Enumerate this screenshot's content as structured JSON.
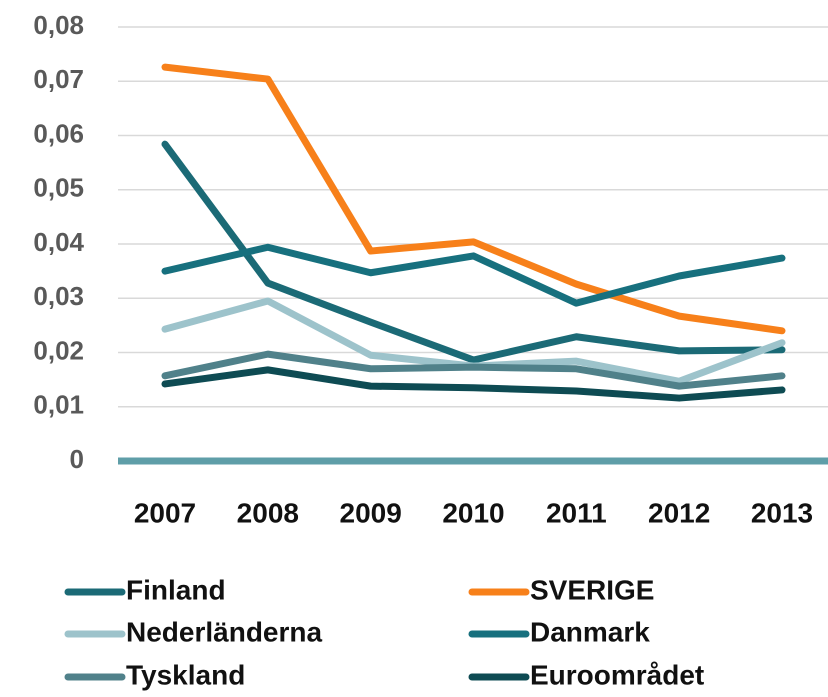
{
  "chart_data": {
    "type": "line",
    "categories": [
      "2007",
      "2008",
      "2009",
      "2010",
      "2011",
      "2012",
      "2013"
    ],
    "series": [
      {
        "name": "Finland",
        "color": "#1b6a76",
        "values": [
          0.0584,
          0.0328,
          0.0256,
          0.0186,
          0.0229,
          0.0203,
          0.0205
        ]
      },
      {
        "name": "SVERIGE",
        "color": "#f7801a",
        "values": [
          0.0726,
          0.0704,
          0.0387,
          0.0404,
          0.0326,
          0.0267,
          0.024
        ]
      },
      {
        "name": "Nederländerna",
        "color": "#9dc3cb",
        "values": [
          0.0243,
          0.0295,
          0.0195,
          0.0175,
          0.0184,
          0.0147,
          0.0218
        ]
      },
      {
        "name": "Danmark",
        "color": "#17707e",
        "values": [
          0.035,
          0.0394,
          0.0347,
          0.0378,
          0.0291,
          0.0341,
          0.0374
        ]
      },
      {
        "name": "Tyskland",
        "color": "#50818a",
        "values": [
          0.0157,
          0.0197,
          0.017,
          0.0173,
          0.017,
          0.0138,
          0.0157
        ]
      },
      {
        "name": "Euroområdet",
        "color": "#0e4b53",
        "values": [
          0.0142,
          0.0168,
          0.0138,
          0.0135,
          0.0129,
          0.0116,
          0.0131
        ]
      }
    ],
    "ylim": [
      0,
      0.08
    ],
    "yticks": [
      0,
      {
        "value": 0.01,
        "label": "0,01"
      },
      {
        "value": 0.02,
        "label": "0,02"
      },
      {
        "value": 0.03,
        "label": "0,03"
      },
      {
        "value": 0.04,
        "label": "0,04"
      },
      {
        "value": 0.05,
        "label": "0,05"
      },
      {
        "value": 0.06,
        "label": "0,06"
      },
      {
        "value": 0.07,
        "label": "0,07"
      },
      {
        "value": 0.08,
        "label": "0,08"
      }
    ],
    "grid": true
  }
}
